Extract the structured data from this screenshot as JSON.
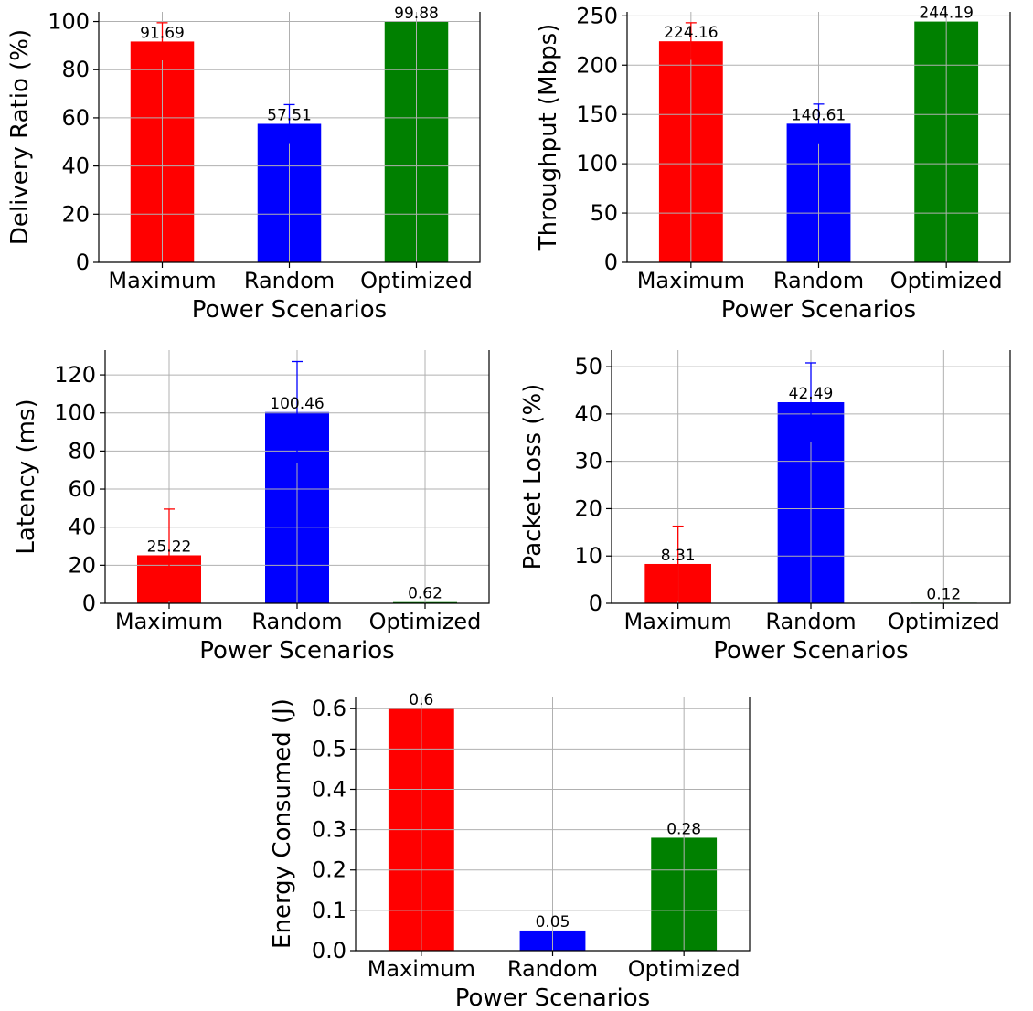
{
  "chart_data": [
    {
      "type": "bar",
      "categories": [
        "Maximum",
        "Random",
        "Optimized"
      ],
      "values": [
        91.69,
        57.51,
        99.88
      ],
      "value_labels": [
        "91.69",
        "57.51",
        "99.88"
      ],
      "error_upper": [
        99.5,
        65.5,
        99.88
      ],
      "colors": [
        "#ff0000",
        "#0000ff",
        "#008000"
      ],
      "xlabel": "Power Scenarios",
      "ylabel": "Delivery Ratio (%)",
      "ylim": [
        0,
        104
      ],
      "yticks": [
        0,
        20,
        40,
        60,
        80,
        100
      ],
      "ytick_labels": [
        "0",
        "20",
        "40",
        "60",
        "80",
        "100"
      ],
      "grid": true
    },
    {
      "type": "bar",
      "categories": [
        "Maximum",
        "Random",
        "Optimized"
      ],
      "values": [
        224.16,
        140.61,
        244.19
      ],
      "value_labels": [
        "224.16",
        "140.61",
        "244.19"
      ],
      "error_upper": [
        243.0,
        160.5,
        244.19
      ],
      "colors": [
        "#ff0000",
        "#0000ff",
        "#008000"
      ],
      "xlabel": "Power Scenarios",
      "ylabel": "Throughput (Mbps)",
      "ylim": [
        0,
        254
      ],
      "yticks": [
        0,
        50,
        100,
        150,
        200,
        250
      ],
      "ytick_labels": [
        "0",
        "50",
        "100",
        "150",
        "200",
        "250"
      ],
      "grid": true
    },
    {
      "type": "bar",
      "categories": [
        "Maximum",
        "Random",
        "Optimized"
      ],
      "values": [
        25.22,
        100.46,
        0.62
      ],
      "value_labels": [
        "25.22",
        "100.46",
        "0.62"
      ],
      "error_upper": [
        49.5,
        127.0,
        0.62
      ],
      "colors": [
        "#ff0000",
        "#0000ff",
        "#008000"
      ],
      "xlabel": "Power Scenarios",
      "ylabel": "Latency (ms)",
      "ylim": [
        0,
        133
      ],
      "yticks": [
        0,
        20,
        40,
        60,
        80,
        100,
        120
      ],
      "ytick_labels": [
        "0",
        "20",
        "40",
        "60",
        "80",
        "100",
        "120"
      ],
      "grid": true
    },
    {
      "type": "bar",
      "categories": [
        "Maximum",
        "Random",
        "Optimized"
      ],
      "values": [
        8.31,
        42.49,
        0.12
      ],
      "value_labels": [
        "8.31",
        "42.49",
        "0.12"
      ],
      "error_upper": [
        16.3,
        50.8,
        0.12
      ],
      "colors": [
        "#ff0000",
        "#0000ff",
        "#008000"
      ],
      "xlabel": "Power Scenarios",
      "ylabel": "Packet Loss (%)",
      "ylim": [
        0,
        53.5
      ],
      "yticks": [
        0,
        10,
        20,
        30,
        40,
        50
      ],
      "ytick_labels": [
        "0",
        "10",
        "20",
        "30",
        "40",
        "50"
      ],
      "grid": true
    },
    {
      "type": "bar",
      "categories": [
        "Maximum",
        "Random",
        "Optimized"
      ],
      "values": [
        0.6,
        0.05,
        0.28
      ],
      "value_labels": [
        "0.6",
        "0.05",
        "0.28"
      ],
      "error_upper": [
        0.6,
        0.05,
        0.28
      ],
      "colors": [
        "#ff0000",
        "#0000ff",
        "#008000"
      ],
      "xlabel": "Power Scenarios",
      "ylabel": "Energy Consumed (J)",
      "ylim": [
        0,
        0.63
      ],
      "yticks": [
        0,
        0.1,
        0.2,
        0.3,
        0.4,
        0.5,
        0.6
      ],
      "ytick_labels": [
        "0.0",
        "0.1",
        "0.2",
        "0.3",
        "0.4",
        "0.5",
        "0.6"
      ],
      "grid": true
    }
  ]
}
